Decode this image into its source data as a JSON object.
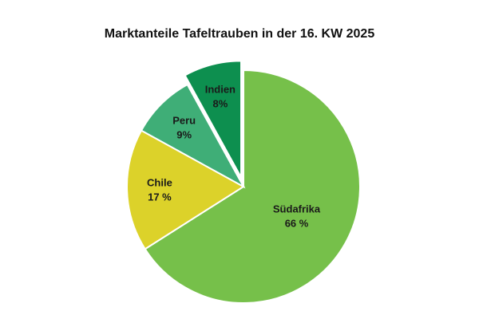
{
  "chart_data": {
    "type": "pie",
    "title": "Marktanteile Tafeltrauben in der 16. KW 2025",
    "slices": [
      {
        "label": "Südafrika",
        "value": 66,
        "display": "66 %",
        "color": "#76c04a"
      },
      {
        "label": "Chile",
        "value": 17,
        "display": "17 %",
        "color": "#dcd22a"
      },
      {
        "label": "Peru",
        "value": 9,
        "display": "9%",
        "color": "#3fae77"
      },
      {
        "label": "Indien",
        "value": 8,
        "display": "8%",
        "color": "#0d8f4f",
        "exploded": true
      }
    ]
  }
}
